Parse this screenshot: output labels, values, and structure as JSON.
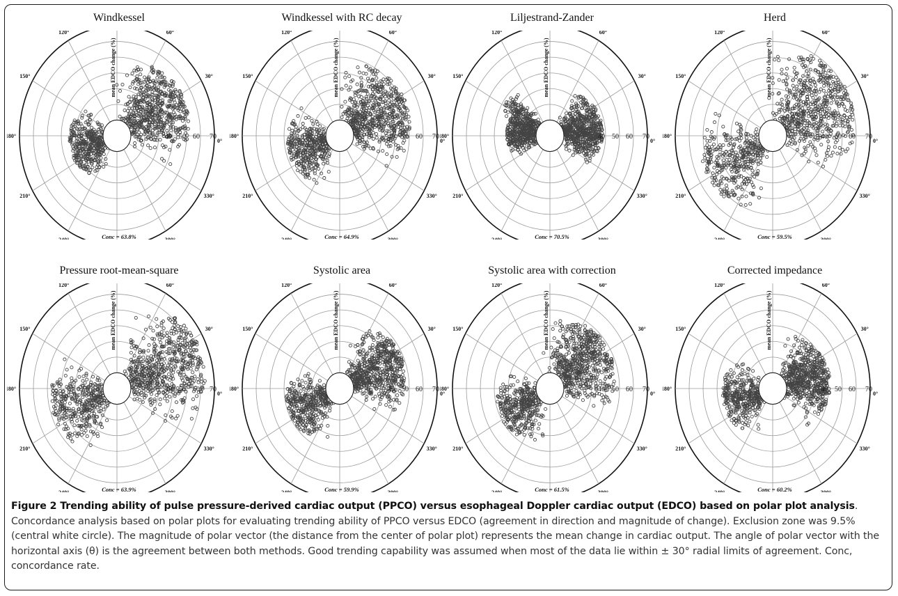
{
  "figure": {
    "panels": [
      {
        "title": "Windkessel",
        "conc": "Conc = 63.8%",
        "seed": 11,
        "right_lobe": [
          30,
          80,
          0.62
        ],
        "left_lobe": [
          195,
          70,
          0.35
        ],
        "extra_lobe": null
      },
      {
        "title": "Windkessel with RC decay",
        "conc": "Conc = 64.9%",
        "seed": 23,
        "right_lobe": [
          28,
          85,
          0.6
        ],
        "left_lobe": [
          200,
          75,
          0.4
        ],
        "extra_lobe": null
      },
      {
        "title": "Liljestrand-Zander",
        "conc": "Conc = 70.5%",
        "seed": 37,
        "right_lobe": [
          10,
          70,
          0.4
        ],
        "left_lobe": [
          175,
          60,
          0.3
        ],
        "extra_lobe": [
          145,
          30,
          0.4
        ]
      },
      {
        "title": "Herd",
        "conc": "Conc = 59.5%",
        "seed": 41,
        "right_lobe": [
          30,
          90,
          0.72
        ],
        "left_lobe": [
          210,
          75,
          0.62
        ],
        "extra_lobe": null
      },
      {
        "title": "Pressure root-mean-square",
        "conc": "Conc = 63.9%",
        "seed": 53,
        "right_lobe": [
          22,
          75,
          0.78
        ],
        "left_lobe": [
          200,
          75,
          0.55
        ],
        "extra_lobe": null
      },
      {
        "title": "Systolic area",
        "conc": "Conc = 59.9%",
        "seed": 67,
        "right_lobe": [
          25,
          70,
          0.55
        ],
        "left_lobe": [
          205,
          70,
          0.42
        ],
        "extra_lobe": null
      },
      {
        "title": "Systolic area with correction",
        "conc": "Conc = 61.5%",
        "seed": 71,
        "right_lobe": [
          35,
          85,
          0.55
        ],
        "left_lobe": [
          210,
          70,
          0.42
        ],
        "extra_lobe": null
      },
      {
        "title": "Corrected impedance",
        "conc": "Conc = 60.2%",
        "seed": 89,
        "right_lobe": [
          15,
          80,
          0.45
        ],
        "left_lobe": [
          195,
          75,
          0.38
        ],
        "extra_lobe": null
      }
    ],
    "angle_labels": [
      "90°",
      "60°",
      "30°",
      "0°",
      "330°",
      "300°",
      "270°",
      "240°",
      "210°",
      "180°",
      "150°",
      "120°"
    ],
    "radial_labels": [
      "40",
      "50",
      "60",
      "70"
    ],
    "radial_axis_title": "mean EDCO change (%)",
    "exclusion_zone_percent": 9.5,
    "max_radius_percent": 70
  },
  "caption": {
    "title": "Figure 2 Trending ability of pulse pressure-derived cardiac output (PPCO) versus esophageal Doppler cardiac output (EDCO) based on polar plot analysis",
    "body": ". Concordance analysis based on polar plots for evaluating trending ability of PPCO versus EDCO (agreement in direction and magnitude of change). Exclusion zone was 9.5% (central white circle). The magnitude of polar vector (the distance from the center of polar plot) represents the mean change in cardiac output. The angle of polar vector with the horizontal axis (θ) is the agreement between both methods. Good trending capability was assumed when most of the data lie within ± 30° radial limits of agreement. Conc, concordance rate."
  }
}
